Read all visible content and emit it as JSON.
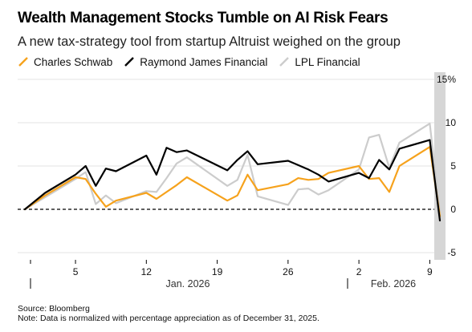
{
  "header": {
    "title": "Wealth Management Stocks Tumble on AI Risk Fears",
    "subtitle": "A new tax-strategy tool from startup Altruist weighed on the group"
  },
  "footer": {
    "source": "Source: Bloomberg",
    "note": "Note: Data is normalized with percentage appreciation as of December 31, 2025."
  },
  "colors": {
    "schwab": "#f6a21c",
    "raymond_james": "#000000",
    "lpl": "#cccccc",
    "highlight_band": "#d6d6d6",
    "zero_line": "#000000"
  },
  "chart_data": {
    "type": "line",
    "title": "Wealth Management Stocks Tumble on AI Risk Fears",
    "subtitle": "A new tax-strategy tool from startup Altruist weighed on the group",
    "x_tick_labels": [
      "5",
      "12",
      "19",
      "26",
      "2",
      "9"
    ],
    "x_tick_dates": [
      "2026-01-05",
      "2026-01-12",
      "2026-01-19",
      "2026-01-26",
      "2026-02-02",
      "2026-02-09"
    ],
    "x_period_labels": [
      "Jan. 2026",
      "Feb. 2026"
    ],
    "y_tick_labels": [
      "15%",
      "10",
      "5",
      "0",
      "-5"
    ],
    "y_ticks": [
      15,
      10,
      5,
      0,
      -5
    ],
    "ylim": [
      -5,
      15
    ],
    "ylabel": "",
    "xlabel": "",
    "highlight": {
      "date": "2026-02-10"
    },
    "legend_position": "top-left",
    "grid": "y-only",
    "x": [
      "2025-12-31",
      "2026-01-02",
      "2026-01-05",
      "2026-01-06",
      "2026-01-07",
      "2026-01-08",
      "2026-01-09",
      "2026-01-12",
      "2026-01-13",
      "2026-01-14",
      "2026-01-15",
      "2026-01-16",
      "2026-01-20",
      "2026-01-21",
      "2026-01-22",
      "2026-01-23",
      "2026-01-26",
      "2026-01-27",
      "2026-01-28",
      "2026-01-29",
      "2026-01-30",
      "2026-02-02",
      "2026-02-03",
      "2026-02-04",
      "2026-02-05",
      "2026-02-06",
      "2026-02-09",
      "2026-02-10"
    ],
    "series": [
      {
        "name": "Charles Schwab",
        "key": "schwab",
        "values": [
          0.0,
          1.6,
          3.7,
          3.5,
          1.8,
          0.3,
          1.0,
          1.9,
          1.2,
          2.0,
          2.8,
          3.7,
          1.0,
          1.6,
          4.0,
          2.2,
          2.9,
          3.6,
          3.4,
          3.5,
          4.2,
          5.0,
          3.5,
          3.6,
          2.0,
          5.0,
          7.2,
          -0.8
        ]
      },
      {
        "name": "Raymond James Financial",
        "key": "raymond_james",
        "values": [
          0.0,
          1.9,
          4.0,
          5.0,
          2.7,
          4.7,
          4.4,
          6.2,
          4.0,
          7.1,
          6.6,
          6.8,
          4.5,
          5.7,
          6.7,
          5.2,
          5.6,
          5.1,
          4.6,
          4.0,
          3.2,
          4.2,
          3.6,
          5.7,
          4.6,
          7.0,
          8.0,
          -1.3
        ]
      },
      {
        "name": "LPL Financial",
        "key": "lpl",
        "values": [
          0.0,
          1.4,
          3.5,
          4.3,
          0.6,
          1.6,
          0.7,
          2.1,
          2.0,
          3.6,
          5.3,
          6.0,
          2.7,
          3.4,
          6.3,
          1.5,
          0.5,
          2.3,
          2.4,
          1.7,
          2.2,
          4.6,
          8.3,
          8.6,
          4.8,
          7.7,
          9.9,
          -0.4
        ]
      }
    ]
  }
}
